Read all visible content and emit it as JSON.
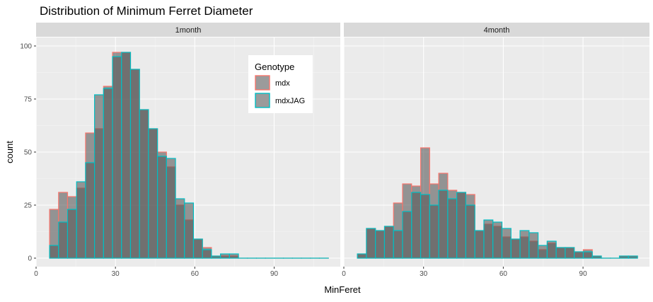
{
  "chart_data": {
    "type": "histogram",
    "title": "Distribution of Minimum Ferret Diameter",
    "xlabel": "MinFeret",
    "ylabel": "count",
    "xlim": [
      0,
      115
    ],
    "ylim": [
      -4,
      104
    ],
    "x_ticks": [
      0,
      30,
      60,
      90
    ],
    "y_ticks": [
      0,
      25,
      50,
      75,
      100
    ],
    "bin_width": 3.4,
    "bin_starts": [
      5.1,
      8.5,
      11.9,
      15.3,
      18.7,
      22.1,
      25.5,
      28.9,
      32.3,
      35.7,
      39.1,
      42.5,
      45.9,
      49.3,
      52.7,
      56.1,
      59.5,
      62.9,
      66.3,
      69.7,
      73.1,
      76.5,
      79.9,
      83.3,
      86.7,
      90.1,
      93.5,
      96.9,
      100.3,
      103.7,
      107.1
    ],
    "legend": {
      "title": "Genotype",
      "entries": [
        "mdx",
        "mdxJAG"
      ],
      "outline_colors": [
        "#F8766D",
        "#00BFC4"
      ],
      "fill_color": "#595959",
      "position": "inside top-right of left panel"
    },
    "panels": [
      {
        "label": "1month",
        "series": [
          {
            "name": "mdx",
            "values": [
              23,
              31,
              29,
              33,
              59,
              61,
              81,
              97,
              97,
              89,
              70,
              61,
              50,
              43,
              25,
              18,
              9,
              5,
              1,
              1,
              1,
              0,
              0,
              0,
              0,
              0,
              0,
              0,
              0,
              0,
              0
            ]
          },
          {
            "name": "mdxJAG",
            "values": [
              6,
              17,
              23,
              36,
              45,
              77,
              80,
              95,
              97,
              89,
              70,
              61,
              48,
              47,
              28,
              26,
              9,
              4,
              1,
              2,
              2,
              0,
              0,
              0,
              0,
              0,
              0,
              0,
              0,
              0,
              0
            ]
          }
        ]
      },
      {
        "label": "4month",
        "series": [
          {
            "name": "mdx",
            "values": [
              2,
              14,
              13,
              15,
              26,
              35,
              34,
              52,
              35,
              40,
              32,
              31,
              30,
              13,
              16,
              15,
              10,
              9,
              10,
              8,
              4,
              7,
              5,
              5,
              3,
              4,
              1,
              0,
              0,
              1,
              1
            ]
          },
          {
            "name": "mdxJAG",
            "values": [
              2,
              14,
              13,
              15,
              13,
              22,
              31,
              30,
              25,
              32,
              28,
              31,
              25,
              13,
              18,
              17,
              14,
              9,
              13,
              12,
              6,
              8,
              5,
              5,
              3,
              3,
              1,
              0,
              0,
              1,
              1
            ]
          }
        ]
      }
    ]
  }
}
